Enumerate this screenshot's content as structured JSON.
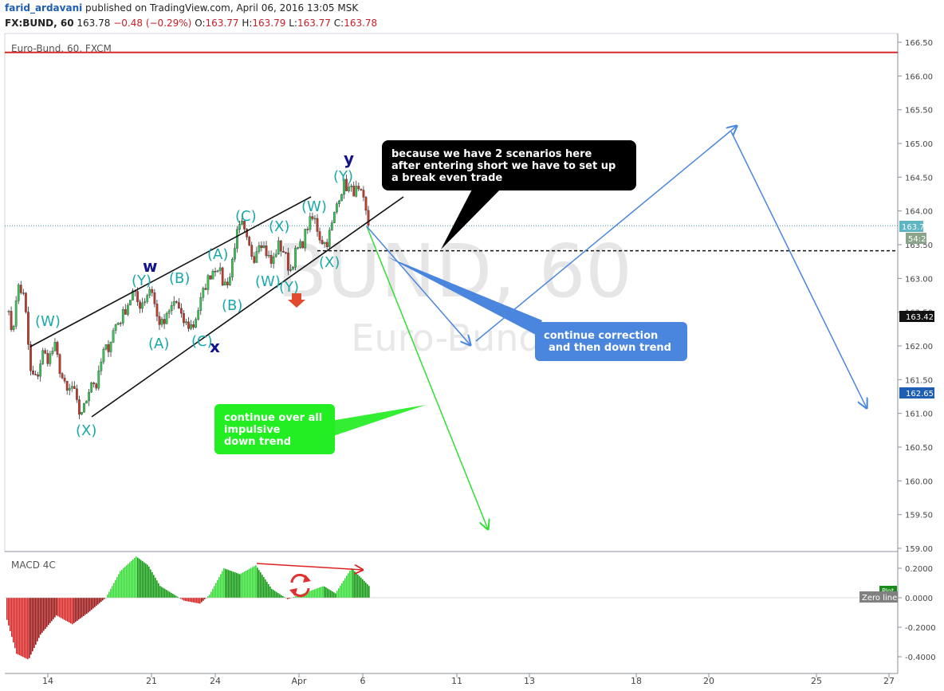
{
  "header": {
    "user": "farid_ardavani",
    "published": "published on TradingView.com, April 06, 2016 13:05 MSK",
    "symbol": "FX:BUND, 60",
    "last": "163.78",
    "change": "−0.48 (−0.29%)",
    "ohlc_o_label": "O:",
    "ohlc_o": "163.77",
    "ohlc_h_label": "H:",
    "ohlc_h": "163.79",
    "ohlc_l_label": "L:",
    "ohlc_l": "163.77",
    "ohlc_c_label": "C:",
    "ohlc_c": "163.78"
  },
  "chart_data": [
    {
      "type": "candlestick",
      "title": "Euro-Bund, 60, FXCM",
      "watermark": "BUND, 60",
      "watermark_sub": "Euro-Bund",
      "ylim": [
        159.0,
        166.5
      ],
      "y_ticks": [
        "166.50",
        "166.00",
        "165.50",
        "165.00",
        "164.50",
        "164.00",
        "163.50",
        "163.00",
        "162.50",
        "162.00",
        "161.50",
        "161.00",
        "160.50",
        "160.00",
        "159.50",
        "159.00"
      ],
      "x_ticks": [
        "14",
        "21",
        "24",
        "Apr",
        "6",
        "11",
        "13",
        "18",
        "20",
        "25",
        "27"
      ],
      "price_path": [
        [
          0,
          162.6
        ],
        [
          1,
          162.2
        ],
        [
          2,
          162.9
        ],
        [
          3,
          162.7
        ],
        [
          4,
          161.6
        ],
        [
          5,
          161.5
        ],
        [
          6,
          161.9
        ],
        [
          7,
          161.8
        ],
        [
          8,
          162.0
        ],
        [
          9,
          161.6
        ],
        [
          10,
          161.3
        ],
        [
          11,
          161.4
        ],
        [
          12,
          161.0
        ],
        [
          13,
          161.1
        ],
        [
          14,
          161.5
        ],
        [
          15,
          161.4
        ],
        [
          16,
          161.9
        ],
        [
          17,
          162.0
        ],
        [
          18,
          162.3
        ],
        [
          19,
          162.4
        ],
        [
          20,
          162.6
        ],
        [
          21,
          162.8
        ],
        [
          22,
          162.6
        ],
        [
          23,
          162.7
        ],
        [
          24,
          162.9
        ],
        [
          25,
          162.4
        ],
        [
          26,
          162.3
        ],
        [
          27,
          162.5
        ],
        [
          28,
          162.7
        ],
        [
          29,
          162.4
        ],
        [
          30,
          162.3
        ],
        [
          31,
          162.3
        ],
        [
          32,
          162.6
        ],
        [
          33,
          162.9
        ],
        [
          34,
          163.1
        ],
        [
          35,
          163.2
        ],
        [
          36,
          162.9
        ],
        [
          37,
          163.0
        ],
        [
          38,
          163.6
        ],
        [
          39,
          163.8
        ],
        [
          40,
          163.5
        ],
        [
          41,
          163.3
        ],
        [
          42,
          163.6
        ],
        [
          43,
          163.4
        ],
        [
          44,
          163.2
        ],
        [
          45,
          163.5
        ],
        [
          46,
          163.4
        ],
        [
          47,
          163.1
        ],
        [
          48,
          163.4
        ],
        [
          49,
          163.5
        ],
        [
          50,
          163.8
        ],
        [
          51,
          163.9
        ],
        [
          52,
          163.6
        ],
        [
          53,
          163.5
        ],
        [
          54,
          163.8
        ],
        [
          55,
          164.2
        ],
        [
          56,
          164.4
        ],
        [
          57,
          164.3
        ],
        [
          58,
          164.3
        ],
        [
          59,
          164.2
        ],
        [
          60,
          163.8
        ]
      ],
      "last_price": "163.78",
      "countdown": "54:21",
      "level_label_1": "163.42",
      "level_label_2": "162.65",
      "resistance": 166.35,
      "dashed_level": 163.41,
      "wave_labels": [
        "(W)",
        "(Y)",
        "w",
        "(B)",
        "(A)",
        "(A)",
        "(C)",
        "x",
        "(B)",
        "(C)",
        "(X)",
        "(W)",
        "(Y)",
        "(X)",
        "(W)",
        "(Y)",
        "y",
        "(X)"
      ],
      "annotations": {
        "black": [
          "because we have 2 scenarios here",
          "after entering short we have to set up",
          "a break even trade"
        ],
        "blue": [
          "continue correction",
          "and then down trend"
        ],
        "green": [
          "continue over all",
          "impulsive",
          "down trend"
        ]
      }
    },
    {
      "type": "bar",
      "title": "MACD 4C",
      "ylim": [
        -0.45,
        0.25
      ],
      "y_ticks": [
        "0.2000",
        "0.0000",
        "-0.2000",
        "-0.4000"
      ],
      "zero_label": "Zero line",
      "plot_tag": "Plot",
      "colors": {
        "up": "#33dd33",
        "down": "#dd2222",
        "dark_up": "#119911",
        "dark_down": "#991111"
      }
    }
  ],
  "colors": {
    "wave_teal": "#1aa8a8",
    "wave_navy": "#12128a",
    "green_path": "#33dd33",
    "blue_path": "#4a86dd",
    "resistance": "#d62a2a"
  }
}
